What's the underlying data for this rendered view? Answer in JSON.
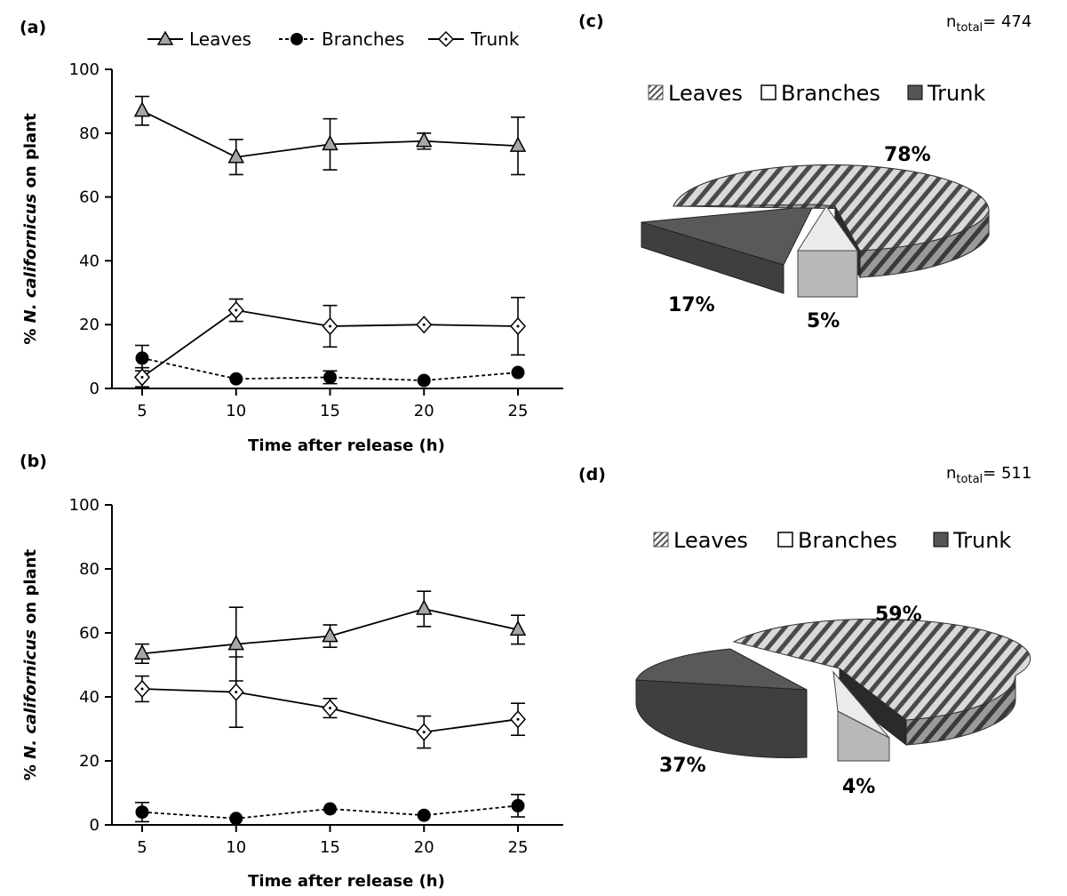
{
  "legend_top": [
    "Leaves",
    "Branches",
    "Trunk"
  ],
  "chart_data": [
    {
      "panel": "(a)",
      "type": "line",
      "xlabel": "Time after release (h)",
      "ylabel_prefix": "% ",
      "ylabel_italic": "N. californicus",
      "ylabel_suffix": " on plant",
      "ylim": [
        0,
        100
      ],
      "yticks": [
        0,
        20,
        40,
        60,
        80,
        100
      ],
      "x": [
        5,
        10,
        15,
        20,
        25
      ],
      "series": [
        {
          "name": "Leaves",
          "marker": "triangle",
          "dash": "solid",
          "values": [
            87,
            72.5,
            76.5,
            77.5,
            76
          ],
          "errors": [
            4.5,
            5.5,
            8,
            2.5,
            9
          ]
        },
        {
          "name": "Branches",
          "marker": "circle",
          "dash": "dashed",
          "values": [
            9.5,
            3,
            3.5,
            2.5,
            5
          ],
          "errors": [
            4,
            0,
            2,
            0,
            0
          ]
        },
        {
          "name": "Trunk",
          "marker": "diamond",
          "dash": "solid",
          "values": [
            3.5,
            24.5,
            19.5,
            20,
            19.5
          ],
          "errors": [
            3,
            3.5,
            6.5,
            0,
            9
          ]
        }
      ]
    },
    {
      "panel": "(b)",
      "type": "line",
      "xlabel": "Time after release (h)",
      "ylabel_prefix": "% ",
      "ylabel_italic": "N. californicus",
      "ylabel_suffix": " on plant",
      "ylim": [
        0,
        100
      ],
      "yticks": [
        0,
        20,
        40,
        60,
        80,
        100
      ],
      "x": [
        5,
        10,
        15,
        20,
        25
      ],
      "series": [
        {
          "name": "Leaves",
          "marker": "triangle",
          "dash": "solid",
          "values": [
            53.5,
            56.5,
            59,
            67.5,
            61
          ],
          "errors": [
            3,
            11.5,
            3.5,
            5.5,
            4.5
          ]
        },
        {
          "name": "Branches",
          "marker": "circle",
          "dash": "dashed",
          "values": [
            4,
            2,
            5,
            3,
            6
          ],
          "errors": [
            3,
            0,
            0,
            0,
            3.5
          ]
        },
        {
          "name": "Trunk",
          "marker": "diamond",
          "dash": "solid",
          "values": [
            42.5,
            41.5,
            36.5,
            29,
            33
          ],
          "errors": [
            4,
            11,
            3,
            5,
            5
          ]
        }
      ]
    },
    {
      "panel": "(c)",
      "type": "pie",
      "n_label_base": "n",
      "n_label_sub": "total",
      "n_label_value": "= 474",
      "categories": [
        "Leaves",
        "Branches",
        "Trunk"
      ],
      "values": [
        78,
        5,
        17
      ],
      "labels": [
        "78%",
        "5%",
        "17%"
      ]
    },
    {
      "panel": "(d)",
      "type": "pie",
      "n_label_base": "n",
      "n_label_sub": "total",
      "n_label_value": "= 511",
      "categories": [
        "Leaves",
        "Branches",
        "Trunk"
      ],
      "values": [
        59,
        4,
        37
      ],
      "labels": [
        "59%",
        "4%",
        "37%"
      ]
    }
  ]
}
